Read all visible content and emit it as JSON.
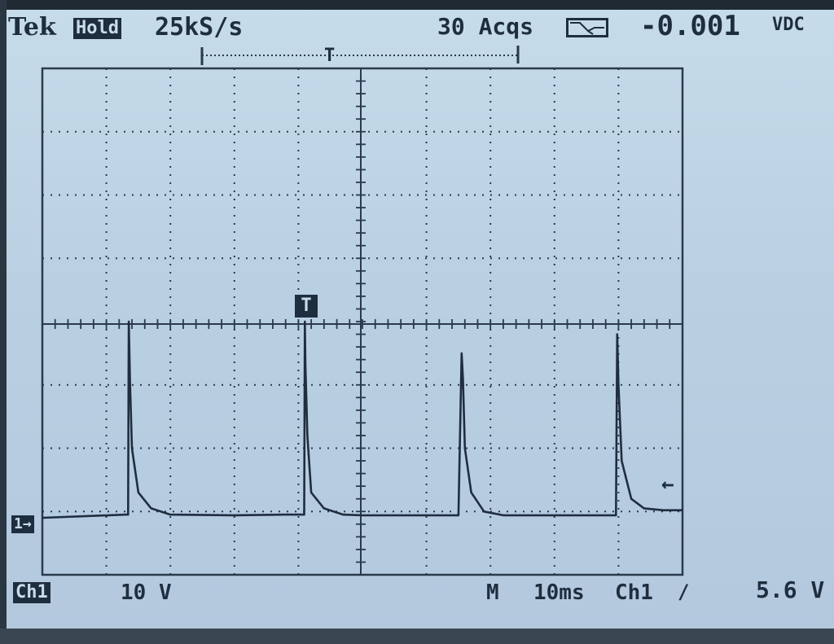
{
  "header": {
    "brand": "Tek",
    "mode": "Hold",
    "sample_rate": "25kS/s",
    "acquisitions": "30 Acqs",
    "measurement_value": "-0.001",
    "measurement_unit": "VDC",
    "trigger_position_label": "T"
  },
  "footer": {
    "channel": "Ch1",
    "volts_per_div": "10 V",
    "timebase_mode": "M",
    "time_per_div": "10ms",
    "trigger_source": "Ch1",
    "trigger_slope": "/",
    "trigger_level": "5.6 V"
  },
  "markers": {
    "ch1_ground": "1→",
    "trigger_tag": "T",
    "level_arrow": "←"
  },
  "icons": {
    "trigger_mode": "trigger-envelope-icon"
  },
  "colors": {
    "screen": "#bcd3e4",
    "trace": "#1f2e3f",
    "grid": "#2a3a4c"
  },
  "chart_data": {
    "type": "line",
    "xlabel": "",
    "ylabel": "",
    "xlim": [
      -50,
      50
    ],
    "ylim": [
      -40,
      40
    ],
    "grid": true,
    "series": [
      {
        "x": [
          -50,
          -37,
          -36.6,
          -36.5,
          -36.3,
          -36,
          -35,
          -33,
          -30,
          -20,
          -12,
          -9.1,
          -9,
          -8.9,
          -8.6,
          -8,
          -6,
          -3,
          0,
          10,
          15,
          15.5,
          15.7,
          16,
          17,
          19,
          22,
          30,
          39.6,
          39.8,
          40,
          40.5,
          42,
          44,
          47,
          50
        ],
        "y": [
          -31,
          -30.5,
          -30.5,
          0,
          -10,
          -20,
          -27,
          -29.5,
          -30.5,
          -30.6,
          -30.5,
          -30.5,
          0,
          -7,
          -18,
          -27,
          -29.5,
          -30.5,
          -30.6,
          -30.6,
          -30.6,
          -5,
          -9,
          -20,
          -27,
          -30,
          -30.6,
          -30.6,
          -30.6,
          -2,
          -10,
          -22,
          -28,
          -29.5,
          -29.8,
          -29.8
        ]
      }
    ]
  }
}
